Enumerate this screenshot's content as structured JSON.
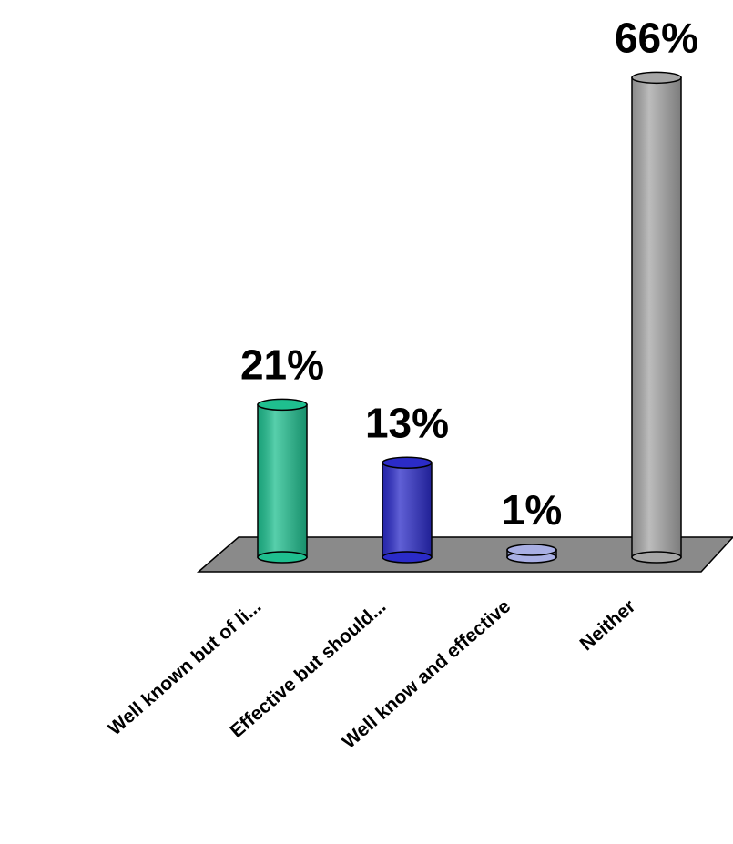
{
  "chart_data": {
    "type": "bar",
    "categories": [
      "Well known but of li...",
      "Effective but should...",
      "Well know and effective",
      "Neither"
    ],
    "values": [
      21,
      13,
      1,
      66
    ],
    "value_labels": [
      "21%",
      "13%",
      "1%",
      "66%"
    ],
    "colors": [
      "#1fbf8f",
      "#2b2bc8",
      "#a9afe4",
      "#a6a6a6"
    ]
  }
}
